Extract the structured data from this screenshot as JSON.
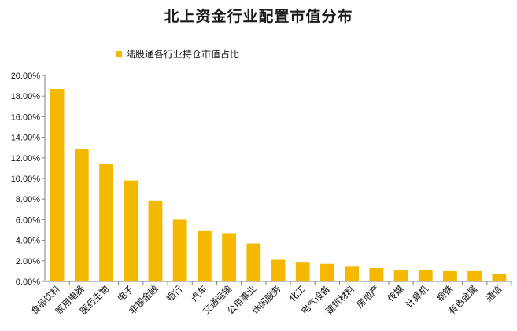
{
  "colors": {
    "bar": "#F5B800",
    "axis": "#7f7f7f",
    "text": "#111111"
  },
  "chart_data": {
    "type": "bar",
    "title": "北上资金行业配置市值分布",
    "xlabel": "",
    "ylabel": "",
    "ylim": [
      0,
      20
    ],
    "y_tick_labels": [
      "0.00%",
      "2.00%",
      "4.00%",
      "6.00%",
      "8.00%",
      "10.00%",
      "12.00%",
      "14.00%",
      "16.00%",
      "18.00%",
      "20.00%"
    ],
    "legend_position": "top-left",
    "grid": false,
    "categories": [
      "食品饮料",
      "家用电器",
      "医药生物",
      "电子",
      "非银金融",
      "银行",
      "汽车",
      "交通运输",
      "公用事业",
      "休闲服务",
      "化工",
      "电气设备",
      "建筑材料",
      "房地产",
      "传媒",
      "计算机",
      "钢铁",
      "有色金属",
      "通信"
    ],
    "series": [
      {
        "name": "陆股通各行业持仓市值占比",
        "values": [
          18.7,
          12.9,
          11.4,
          9.8,
          7.8,
          6.0,
          4.9,
          4.7,
          3.7,
          2.1,
          1.9,
          1.7,
          1.5,
          1.3,
          1.1,
          1.1,
          1.0,
          1.0,
          0.7
        ]
      }
    ]
  }
}
